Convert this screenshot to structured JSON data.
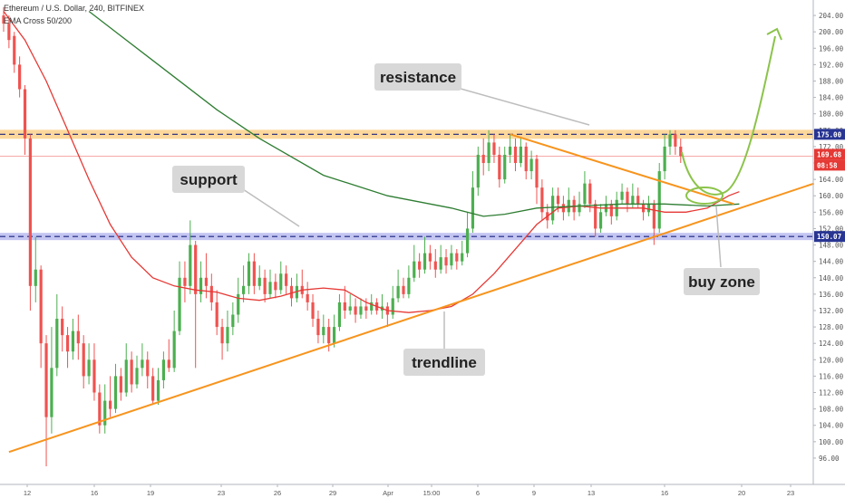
{
  "header": {
    "title": "Ethereum / U.S. Dollar, 240, BITFINEX",
    "indicator": "EMA Cross 50/200"
  },
  "chart_data": {
    "type": "candlestick",
    "symbol": "ETHUSD",
    "ylim": [
      94,
      206
    ],
    "y_ticks": [
      96,
      100,
      104,
      108,
      112,
      116,
      120,
      124,
      128,
      132,
      136,
      140,
      144,
      148,
      152,
      156,
      160,
      164,
      168,
      172,
      176,
      180,
      184,
      188,
      192,
      196,
      200,
      204
    ],
    "x_ticks": [
      "12",
      "16",
      "19",
      "23",
      "26",
      "29",
      "Apr",
      "15:00",
      "6",
      "9",
      "13",
      "16",
      "20",
      "23"
    ],
    "price_labels": {
      "resistance": "175.00",
      "last": "169.68",
      "countdown": "08:58",
      "support": "150.07"
    },
    "levels": {
      "resistance": 175.0,
      "support": 150.07,
      "last": 169.68
    },
    "annotations": {
      "resistance": "resistance",
      "support": "support",
      "trendline": "trendline",
      "buy_zone": "buy zone"
    },
    "colors": {
      "up": "#4caf50",
      "down": "#ef5350",
      "ema_fast": "#e53935",
      "ema_slow": "#2e7d32",
      "resistance_band": "#f9b84b",
      "support_band": "#7b7fe0",
      "trendline": "#f7941d",
      "projection": "#8bc34a",
      "label_bg": "#d8d8d8"
    },
    "trendline_points": [
      [
        1,
        97.5
      ],
      [
        152,
        163.0
      ]
    ],
    "wedge_top_points": [
      [
        95,
        175.0
      ],
      [
        137,
        158.0
      ]
    ],
    "ema_fast": [
      [
        0,
        205
      ],
      [
        4,
        198
      ],
      [
        8,
        188
      ],
      [
        12,
        176
      ],
      [
        16,
        164
      ],
      [
        20,
        153
      ],
      [
        24,
        145
      ],
      [
        28,
        140
      ],
      [
        32,
        138
      ],
      [
        36,
        137
      ],
      [
        40,
        136.5
      ],
      [
        44,
        135
      ],
      [
        48,
        134.5
      ],
      [
        52,
        135.5
      ],
      [
        56,
        137
      ],
      [
        60,
        137.5
      ],
      [
        64,
        137
      ],
      [
        68,
        134
      ],
      [
        72,
        132
      ],
      [
        76,
        131.5
      ],
      [
        80,
        132
      ],
      [
        84,
        133
      ],
      [
        88,
        136
      ],
      [
        92,
        141
      ],
      [
        96,
        147
      ],
      [
        100,
        153
      ],
      [
        104,
        157
      ],
      [
        108,
        157.5
      ],
      [
        112,
        157
      ],
      [
        116,
        157
      ],
      [
        120,
        157
      ],
      [
        124,
        156
      ],
      [
        128,
        156
      ],
      [
        132,
        157
      ],
      [
        136,
        160
      ],
      [
        138,
        161
      ]
    ],
    "ema_slow": [
      [
        16,
        205
      ],
      [
        28,
        193
      ],
      [
        40,
        181
      ],
      [
        48,
        174
      ],
      [
        60,
        165
      ],
      [
        72,
        160
      ],
      [
        84,
        157
      ],
      [
        90,
        155
      ],
      [
        94,
        155.5
      ],
      [
        100,
        157
      ],
      [
        108,
        157.5
      ],
      [
        116,
        158
      ],
      [
        124,
        158
      ],
      [
        132,
        157.5
      ],
      [
        138,
        158
      ]
    ],
    "candles": [
      [
        0,
        204,
        202,
        206,
        200
      ],
      [
        1,
        202,
        198,
        204,
        196
      ],
      [
        2,
        199,
        192,
        200,
        190
      ],
      [
        3,
        192,
        186,
        194,
        184
      ],
      [
        4,
        186,
        174,
        187,
        170
      ],
      [
        5,
        174,
        138,
        175,
        132
      ],
      [
        6,
        138,
        142,
        150,
        134
      ],
      [
        7,
        142,
        124,
        143,
        118
      ],
      [
        8,
        124,
        106,
        126,
        94
      ],
      [
        9,
        106,
        118,
        128,
        102
      ],
      [
        10,
        118,
        130,
        136,
        116
      ],
      [
        11,
        130,
        126,
        133,
        122
      ],
      [
        12,
        126,
        122,
        128,
        118
      ],
      [
        13,
        122,
        127,
        130,
        120
      ],
      [
        14,
        127,
        124,
        131,
        120
      ],
      [
        15,
        124,
        116,
        126,
        113
      ],
      [
        16,
        116,
        120,
        124,
        114
      ],
      [
        17,
        120,
        112,
        124,
        110
      ],
      [
        18,
        112,
        104,
        114,
        102
      ],
      [
        19,
        104,
        110,
        114,
        102
      ],
      [
        20,
        110,
        108,
        116,
        106
      ],
      [
        21,
        108,
        116,
        119,
        107
      ],
      [
        22,
        116,
        112,
        118,
        110
      ],
      [
        23,
        112,
        120,
        124,
        111
      ],
      [
        24,
        120,
        114,
        122,
        112
      ],
      [
        25,
        114,
        118,
        121,
        113
      ],
      [
        26,
        118,
        120,
        124,
        116
      ],
      [
        27,
        120,
        116,
        122,
        113
      ],
      [
        28,
        116,
        110,
        118,
        109
      ],
      [
        29,
        110,
        115,
        118,
        109
      ],
      [
        30,
        115,
        120,
        122,
        113
      ],
      [
        31,
        120,
        118,
        125,
        117
      ],
      [
        32,
        118,
        127,
        132,
        117
      ],
      [
        33,
        127,
        140,
        144,
        126
      ],
      [
        34,
        140,
        138,
        144,
        134
      ],
      [
        35,
        138,
        148,
        154,
        136
      ],
      [
        36,
        148,
        136,
        149,
        118
      ],
      [
        37,
        136,
        140,
        144,
        134
      ],
      [
        38,
        140,
        138,
        146,
        135
      ],
      [
        39,
        138,
        134,
        141,
        132
      ],
      [
        40,
        134,
        128,
        137,
        126
      ],
      [
        41,
        128,
        124,
        130,
        120
      ],
      [
        42,
        124,
        128,
        132,
        122
      ],
      [
        43,
        128,
        131,
        134,
        126
      ],
      [
        44,
        131,
        136,
        140,
        129
      ],
      [
        45,
        136,
        138,
        143,
        134
      ],
      [
        46,
        138,
        144,
        146,
        136
      ],
      [
        47,
        144,
        138,
        146,
        136
      ],
      [
        48,
        138,
        140,
        143,
        137
      ],
      [
        49,
        140,
        136,
        142,
        134
      ],
      [
        50,
        136,
        139,
        142,
        135
      ],
      [
        51,
        139,
        137,
        141,
        135
      ],
      [
        52,
        137,
        141,
        144,
        136
      ],
      [
        53,
        141,
        138,
        143,
        136
      ],
      [
        54,
        138,
        135,
        140,
        133
      ],
      [
        55,
        135,
        138,
        141,
        134
      ],
      [
        56,
        138,
        136,
        142,
        135
      ],
      [
        57,
        136,
        134,
        139,
        132
      ],
      [
        58,
        134,
        130,
        136,
        128
      ],
      [
        59,
        130,
        126,
        132,
        124
      ],
      [
        60,
        126,
        128,
        131,
        124
      ],
      [
        61,
        128,
        124,
        130,
        122
      ],
      [
        62,
        124,
        128,
        131,
        123
      ],
      [
        63,
        128,
        134,
        136,
        127
      ],
      [
        64,
        134,
        132,
        138,
        130
      ],
      [
        65,
        132,
        133,
        136,
        131
      ],
      [
        66,
        133,
        131,
        135,
        129
      ],
      [
        67,
        131,
        133,
        135,
        130
      ],
      [
        68,
        133,
        132,
        135,
        130
      ],
      [
        69,
        132,
        134,
        136,
        131
      ],
      [
        70,
        134,
        132,
        135,
        131
      ],
      [
        71,
        132,
        133,
        136,
        130
      ],
      [
        72,
        133,
        131,
        134,
        128
      ],
      [
        73,
        131,
        135,
        138,
        130
      ],
      [
        74,
        135,
        138,
        142,
        134
      ],
      [
        75,
        138,
        136,
        140,
        135
      ],
      [
        76,
        136,
        140,
        143,
        135
      ],
      [
        77,
        140,
        144,
        148,
        139
      ],
      [
        78,
        144,
        142,
        146,
        140
      ],
      [
        79,
        142,
        146,
        150,
        141
      ],
      [
        80,
        146,
        144,
        148,
        142
      ],
      [
        81,
        144,
        142,
        147,
        140
      ],
      [
        82,
        142,
        145,
        148,
        141
      ],
      [
        83,
        145,
        143,
        147,
        141
      ],
      [
        84,
        143,
        146,
        148,
        142
      ],
      [
        85,
        146,
        144,
        147,
        142
      ],
      [
        86,
        144,
        146,
        149,
        143
      ],
      [
        87,
        146,
        152,
        156,
        145
      ],
      [
        88,
        152,
        162,
        166,
        151
      ],
      [
        89,
        162,
        170,
        172,
        160
      ],
      [
        90,
        170,
        168,
        174,
        165
      ],
      [
        91,
        168,
        173,
        176,
        166
      ],
      [
        92,
        173,
        170,
        175,
        168
      ],
      [
        93,
        170,
        164,
        172,
        162
      ],
      [
        94,
        164,
        170,
        172,
        163
      ],
      [
        95,
        170,
        172,
        175,
        168
      ],
      [
        96,
        172,
        168,
        174,
        166
      ],
      [
        97,
        168,
        172,
        174,
        167
      ],
      [
        98,
        172,
        166,
        173,
        164
      ],
      [
        99,
        166,
        169,
        171,
        164
      ],
      [
        100,
        169,
        162,
        170,
        158
      ],
      [
        101,
        162,
        156,
        164,
        154
      ],
      [
        102,
        156,
        154,
        158,
        152
      ],
      [
        103,
        154,
        160,
        162,
        153
      ],
      [
        104,
        160,
        158,
        162,
        156
      ],
      [
        105,
        158,
        156,
        160,
        154
      ],
      [
        106,
        156,
        159,
        162,
        155
      ],
      [
        107,
        159,
        156,
        160,
        154
      ],
      [
        108,
        156,
        158,
        161,
        155
      ],
      [
        109,
        158,
        163,
        166,
        157
      ],
      [
        110,
        163,
        158,
        164,
        156
      ],
      [
        111,
        158,
        152,
        159,
        150
      ],
      [
        112,
        152,
        156,
        158,
        151
      ],
      [
        113,
        156,
        158,
        160,
        155
      ],
      [
        114,
        158,
        155,
        159,
        153
      ],
      [
        115,
        155,
        159,
        161,
        154
      ],
      [
        116,
        159,
        161,
        163,
        158
      ],
      [
        117,
        161,
        158,
        162,
        156
      ],
      [
        118,
        158,
        160,
        163,
        157
      ],
      [
        119,
        160,
        158,
        162,
        157
      ],
      [
        120,
        158,
        156,
        159,
        154
      ],
      [
        121,
        156,
        158,
        160,
        155
      ],
      [
        122,
        158,
        152,
        159,
        148
      ],
      [
        123,
        152,
        166,
        168,
        151
      ],
      [
        124,
        166,
        172,
        175,
        164
      ],
      [
        125,
        172,
        175,
        176,
        170
      ],
      [
        126,
        175,
        172,
        176,
        170
      ],
      [
        127,
        172,
        169.68,
        174,
        168
      ]
    ]
  }
}
